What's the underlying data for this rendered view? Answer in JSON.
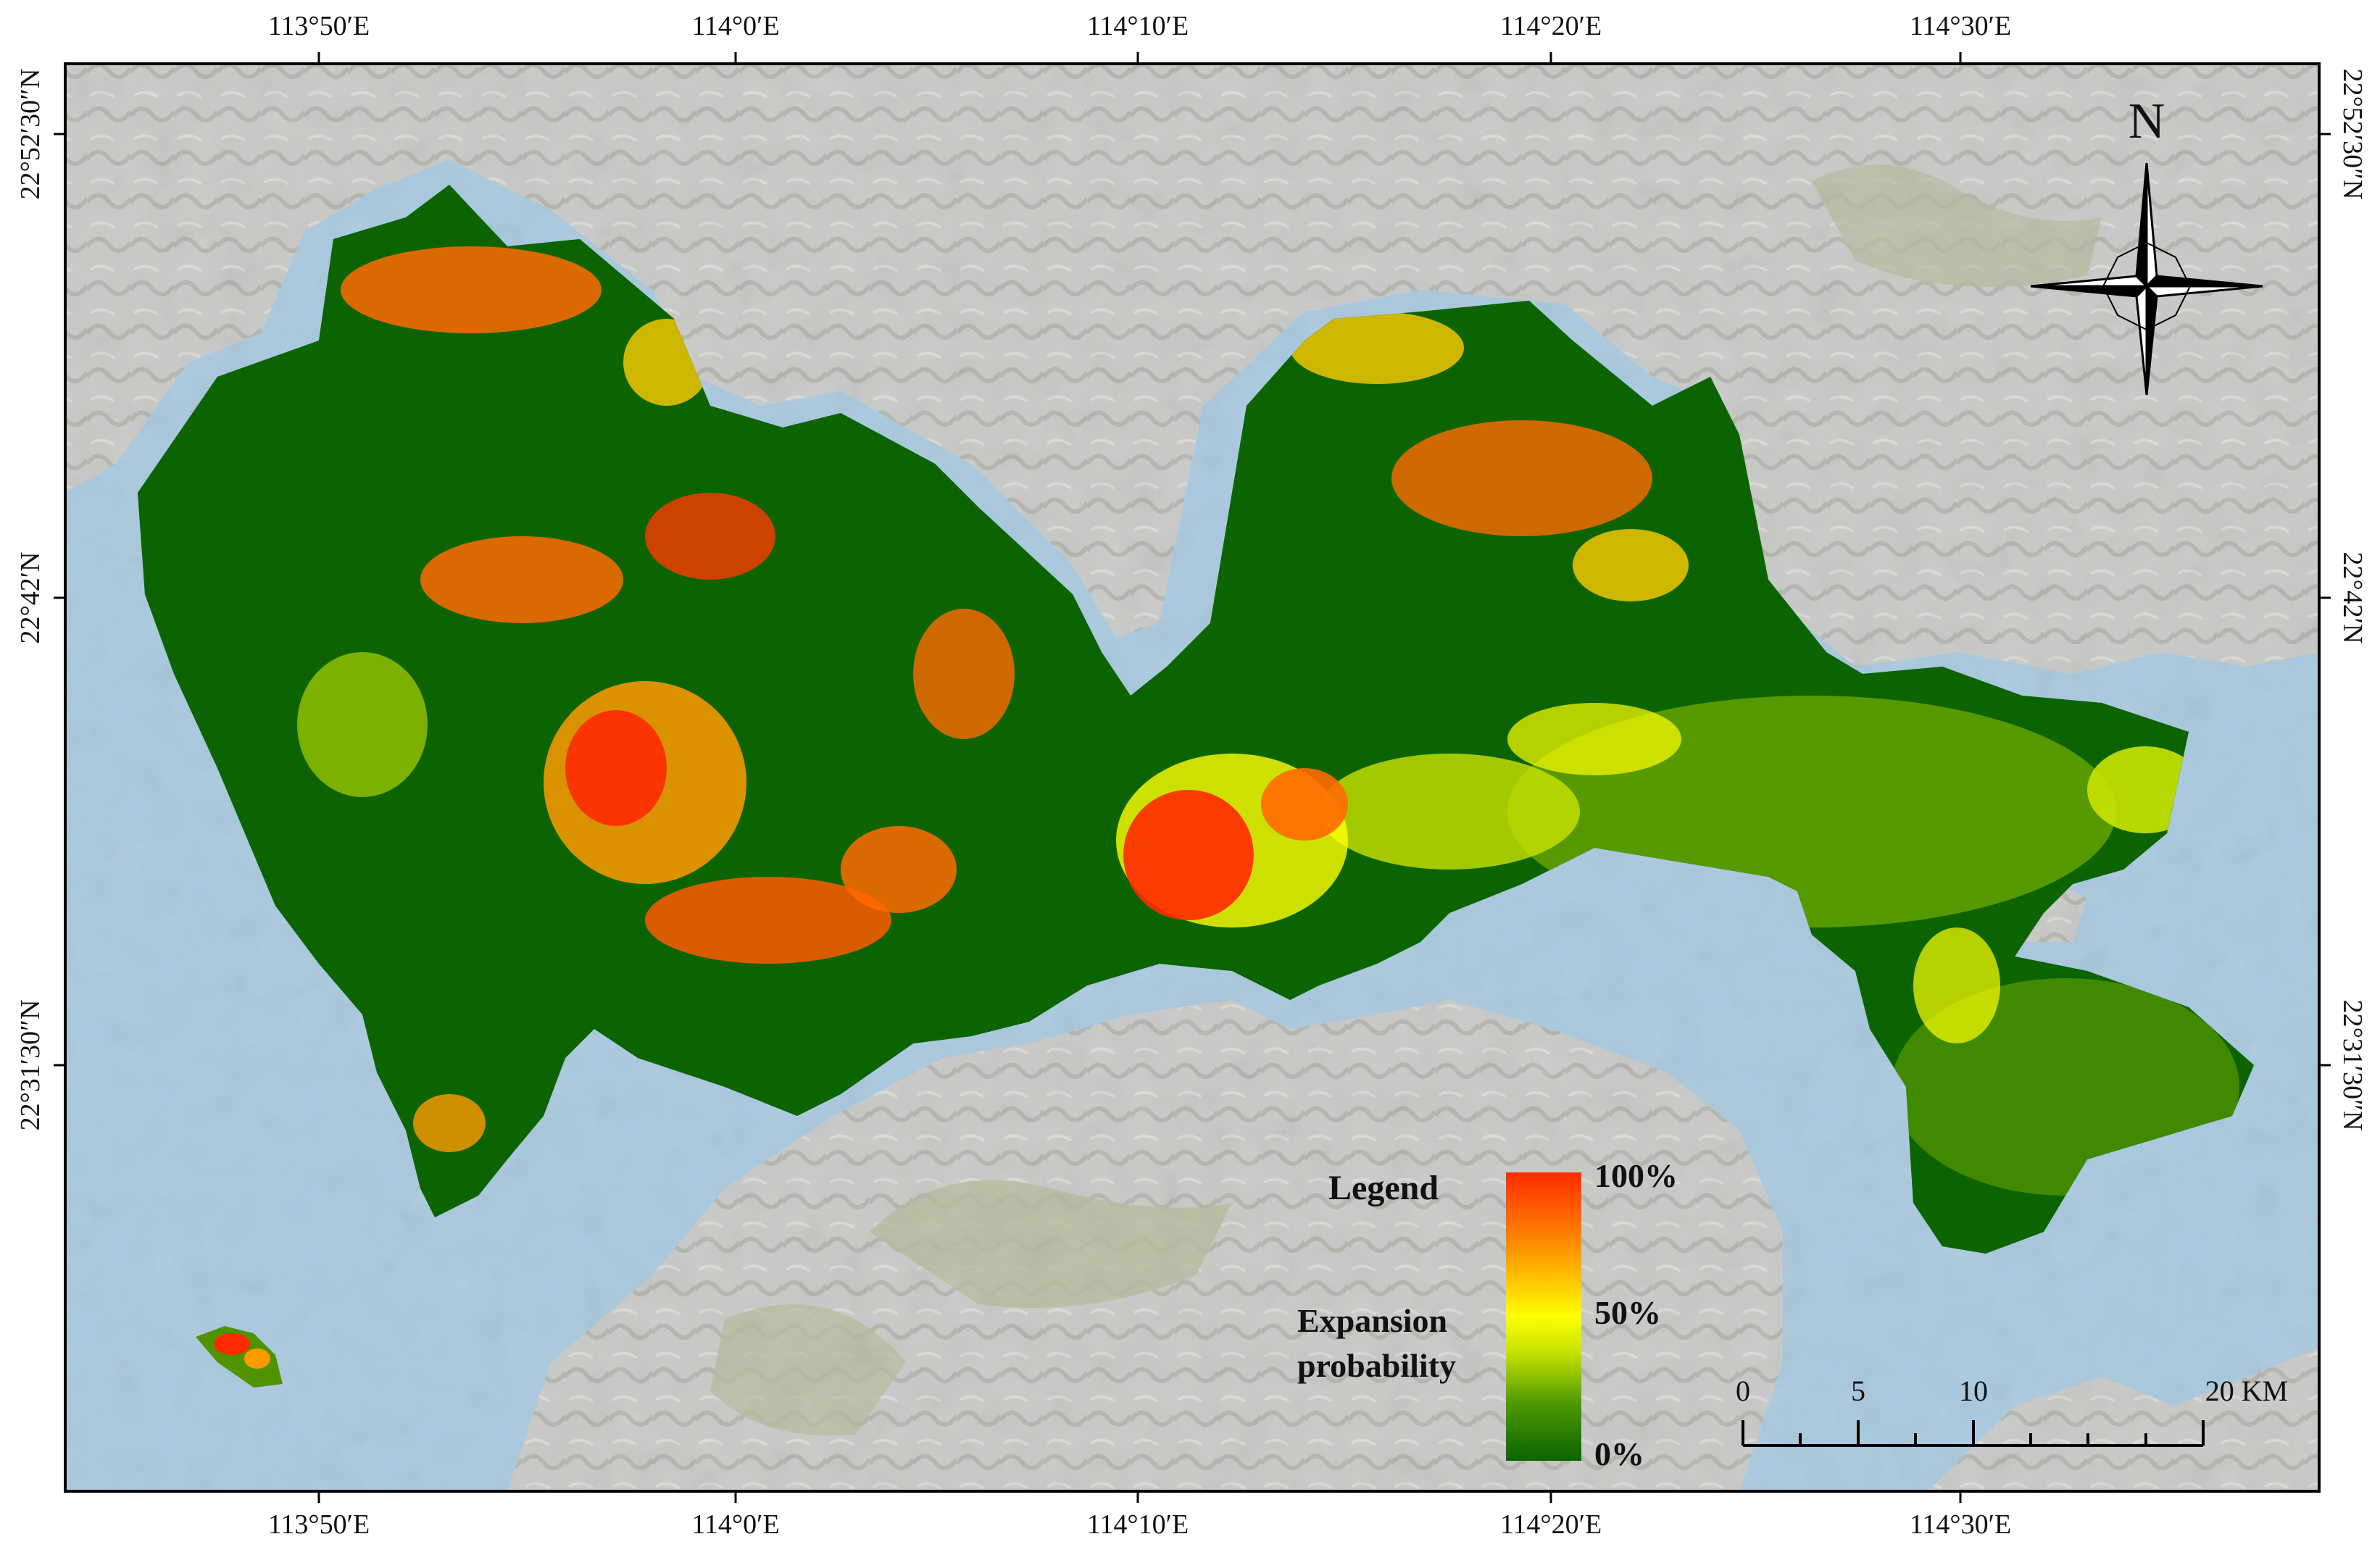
{
  "map": {
    "colors": {
      "sea": "#a9c9df",
      "land": "#c9cac7",
      "hills": "#b4bb9b",
      "prob_low": "#0b6400",
      "prob_mid": "#ffff00",
      "prob_high": "#ff2a00"
    },
    "longitude_ticks": [
      "113°50′E",
      "114°0′E",
      "114°10′E",
      "114°20′E",
      "114°30′E"
    ],
    "latitude_ticks": [
      "22°52′30″N",
      "22°42′N",
      "22°31′30″N"
    ],
    "north_arrow_label": "N",
    "legend": {
      "title": "Legend",
      "subtitle_line1": "Expansion",
      "subtitle_line2": "probability",
      "tick_high": "100%",
      "tick_mid": "50%",
      "tick_low": "0%"
    },
    "scale_bar": {
      "labels": [
        "0",
        "5",
        "10",
        "20 KM"
      ]
    }
  }
}
